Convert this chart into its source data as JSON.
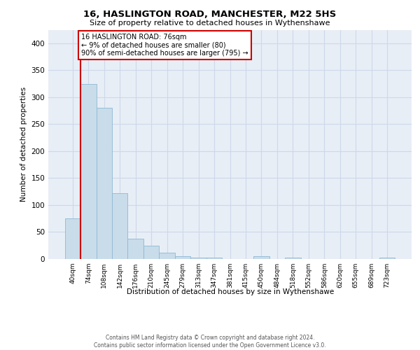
{
  "title_line1": "16, HASLINGTON ROAD, MANCHESTER, M22 5HS",
  "title_line2": "Size of property relative to detached houses in Wythenshawe",
  "xlabel": "Distribution of detached houses by size in Wythenshawe",
  "ylabel": "Number of detached properties",
  "footnote": "Contains HM Land Registry data © Crown copyright and database right 2024.\nContains public sector information licensed under the Open Government Licence v3.0.",
  "bin_labels": [
    "40sqm",
    "74sqm",
    "108sqm",
    "142sqm",
    "176sqm",
    "210sqm",
    "245sqm",
    "279sqm",
    "313sqm",
    "347sqm",
    "381sqm",
    "415sqm",
    "450sqm",
    "484sqm",
    "518sqm",
    "552sqm",
    "586sqm",
    "620sqm",
    "655sqm",
    "689sqm",
    "723sqm"
  ],
  "bar_values": [
    75,
    325,
    280,
    122,
    38,
    25,
    12,
    5,
    3,
    2,
    0,
    0,
    5,
    0,
    3,
    0,
    0,
    0,
    0,
    0,
    3
  ],
  "bar_color": "#c9dcea",
  "bar_edge_color": "#8db8d4",
  "highlight_line_color": "#cc0000",
  "annotation_text": "16 HASLINGTON ROAD: 76sqm\n← 9% of detached houses are smaller (80)\n90% of semi-detached houses are larger (795) →",
  "annotation_box_color": "#ffffff",
  "annotation_box_edge_color": "#cc0000",
  "ylim": [
    0,
    425
  ],
  "yticks": [
    0,
    50,
    100,
    150,
    200,
    250,
    300,
    350,
    400
  ],
  "grid_color": "#cdd8ea",
  "bg_color": "#e8eef6"
}
